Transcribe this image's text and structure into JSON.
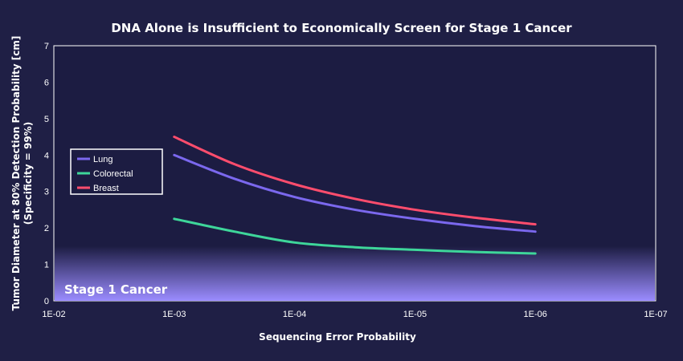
{
  "chart_data": {
    "type": "line",
    "title": "DNA Alone is Insufficient to Economically Screen for Stage 1 Cancer",
    "xlabel": "Sequencing Error Probability",
    "ylabel_line1": "Tumor Diameter at 80% Detection Probability [cm]",
    "ylabel_line2": "(Specificity = 99%)",
    "x_scale": "log-reversed",
    "x_ticks": [
      "1E-02",
      "1E-03",
      "1E-04",
      "1E-05",
      "1E-06",
      "1E-07"
    ],
    "x_tick_values": [
      0.01,
      0.001,
      0.0001,
      1e-05,
      1e-06,
      1e-07
    ],
    "xlim": [
      0.01,
      1e-07
    ],
    "y_ticks": [
      "0",
      "1",
      "2",
      "3",
      "4",
      "5",
      "6",
      "7"
    ],
    "ylim": [
      0,
      7
    ],
    "grid": false,
    "legend_position": "left",
    "band": {
      "label": "Stage 1 Cancer",
      "y_range": [
        0,
        1.5
      ]
    },
    "series": [
      {
        "name": "Lung",
        "color": "#7b68ee",
        "x": [
          0.001,
          0.000316,
          0.0001,
          3.16e-05,
          1e-05,
          3.16e-06,
          1e-06
        ],
        "y": [
          4.0,
          3.35,
          2.85,
          2.5,
          2.25,
          2.05,
          1.9
        ]
      },
      {
        "name": "Colorectal",
        "color": "#3ed69a",
        "x": [
          0.001,
          0.000316,
          0.0001,
          3.16e-05,
          1e-05,
          3.16e-06,
          1e-06
        ],
        "y": [
          2.25,
          1.9,
          1.6,
          1.47,
          1.4,
          1.34,
          1.3
        ]
      },
      {
        "name": "Breast",
        "color": "#ff4d6d",
        "x": [
          0.001,
          0.000316,
          0.0001,
          3.16e-05,
          1e-05,
          3.16e-06,
          1e-06
        ],
        "y": [
          4.5,
          3.75,
          3.2,
          2.8,
          2.5,
          2.28,
          2.1
        ]
      }
    ]
  }
}
